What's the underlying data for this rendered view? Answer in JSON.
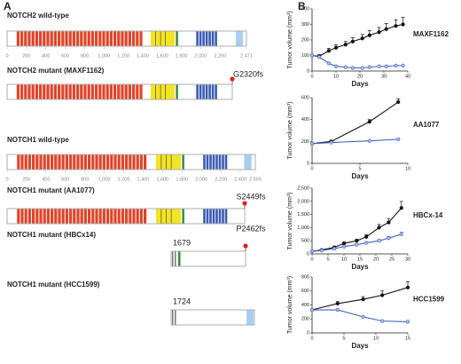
{
  "panel_labels": [
    "A",
    "B"
  ],
  "panel_a": {
    "axes": [
      {
        "lim": [
          0,
          2471
        ],
        "ticks": [
          0,
          200,
          400,
          600,
          800,
          {
            "value": 1000,
            "label": "1,000"
          },
          {
            "value": 1200,
            "label": "1,200"
          },
          {
            "value": 1400,
            "label": "1,400"
          },
          {
            "value": 1600,
            "label": "1,600"
          },
          {
            "value": 1800,
            "label": "1,800"
          },
          {
            "value": 2000,
            "label": "2,000"
          },
          {
            "value": 2200,
            "label": "2,200"
          },
          {
            "value": 2471,
            "label": "2,471"
          }
        ]
      },
      {
        "lim": [
          0,
          2555
        ],
        "ticks": [
          0,
          200,
          400,
          600,
          800,
          {
            "value": 1000,
            "label": "1,000"
          },
          {
            "value": 1200,
            "label": "1,200"
          },
          {
            "value": 1400,
            "label": "1,400"
          },
          {
            "value": 1600,
            "label": "1,600"
          },
          {
            "value": 1800,
            "label": "1,800"
          },
          {
            "value": 2000,
            "label": "2,000"
          },
          {
            "value": 2200,
            "label": "2,200"
          },
          {
            "value": 2400,
            "label": "2,400"
          },
          {
            "value": 2555,
            "label": "2,555"
          }
        ]
      }
    ],
    "tracks": [
      {
        "label": "NOTCH2 wild-type"
      },
      {
        "label": "NOTCH2 mutant (MAXF1162)",
        "mutation": "G2320fs"
      },
      {
        "label": "NOTCH1 wild-type"
      },
      {
        "label": "NOTCH1 mutant (AA1077)",
        "mutation": "S2449fs"
      },
      {
        "label": "NOTCH1 mutant (HBCx14)",
        "mutation": "P2462fs",
        "start": 1679
      },
      {
        "label": "NOTCH1 mutant (HCC1599)",
        "start": 1724
      }
    ]
  },
  "chart_data": [
    {
      "type": "line",
      "title": "MAXF1162",
      "x_label": "Days",
      "y_label": "Tumor volume (mm³)",
      "x": [
        0,
        3,
        7,
        10,
        14,
        17,
        21,
        24,
        28,
        31,
        35,
        38
      ],
      "series": [
        {
          "color": "#111111",
          "values": [
            100,
            95,
            130,
            150,
            170,
            190,
            210,
            230,
            250,
            270,
            290,
            300
          ],
          "errors": [
            5,
            10,
            15,
            20,
            20,
            25,
            25,
            30,
            30,
            35,
            40,
            45
          ]
        },
        {
          "color": "#3f5fbf",
          "values": [
            100,
            90,
            50,
            30,
            25,
            20,
            20,
            25,
            30,
            30,
            35,
            35
          ]
        }
      ],
      "xlim": [
        0,
        40
      ],
      "xticks": [
        0,
        10,
        20,
        30,
        40
      ],
      "ylim": [
        0,
        400
      ],
      "yticks": [
        0,
        100,
        200,
        300,
        400
      ]
    },
    {
      "type": "line",
      "title": "AA1077",
      "x_label": "Days",
      "y_label": "Tumor volume (mm³)",
      "x": [
        0,
        2,
        6,
        9
      ],
      "series": [
        {
          "color": "#111111",
          "values": [
            180,
            200,
            380,
            560
          ],
          "errors": [
            5,
            10,
            20,
            30
          ]
        },
        {
          "color": "#3f5fbf",
          "values": [
            180,
            190,
            205,
            220
          ]
        }
      ],
      "xlim": [
        0,
        10
      ],
      "xticks": [
        0,
        5,
        10
      ],
      "ylim": [
        0,
        600
      ],
      "yticks": [
        0,
        200,
        400,
        600
      ]
    },
    {
      "type": "line",
      "title": "HBCx-14",
      "x_label": "Days",
      "y_label": "Tumor volume (mm³)",
      "x": [
        0,
        3,
        7,
        10,
        14,
        17,
        21,
        24,
        28
      ],
      "series": [
        {
          "color": "#111111",
          "values": [
            100,
            150,
            250,
            400,
            500,
            650,
            1000,
            1200,
            1750
          ],
          "errors": [
            20,
            30,
            40,
            50,
            60,
            80,
            120,
            150,
            250
          ]
        },
        {
          "color": "#3f5fbf",
          "values": [
            100,
            130,
            200,
            280,
            350,
            420,
            500,
            600,
            750
          ],
          "errors": [
            10,
            15,
            20,
            30,
            30,
            40,
            50,
            60,
            80
          ]
        }
      ],
      "xlim": [
        0,
        30
      ],
      "xticks": [
        0,
        5,
        10,
        15,
        20,
        25,
        30
      ],
      "ylim": [
        0,
        2500
      ],
      "yticks": [
        0,
        500,
        {
          "value": 1000,
          "label": "1,000"
        },
        {
          "value": 1500,
          "label": "1,500"
        },
        {
          "value": 2000,
          "label": "2,000"
        },
        {
          "value": 2500,
          "label": "2,500"
        }
      ]
    },
    {
      "type": "line",
      "title": "HCC1599",
      "x_label": "Days",
      "y_label": "Tumor volume (mm³)",
      "x": [
        0,
        4,
        8,
        11,
        15
      ],
      "series": [
        {
          "color": "#111111",
          "values": [
            330,
            420,
            480,
            540,
            650
          ],
          "errors": [
            10,
            30,
            40,
            60,
            80
          ]
        },
        {
          "color": "#3f5fbf",
          "values": [
            330,
            330,
            230,
            170,
            160
          ]
        }
      ],
      "xlim": [
        0,
        15
      ],
      "xticks": [
        0,
        5,
        10,
        15
      ],
      "ylim": [
        0,
        800
      ],
      "yticks": [
        0,
        200,
        400,
        600,
        800
      ]
    }
  ]
}
